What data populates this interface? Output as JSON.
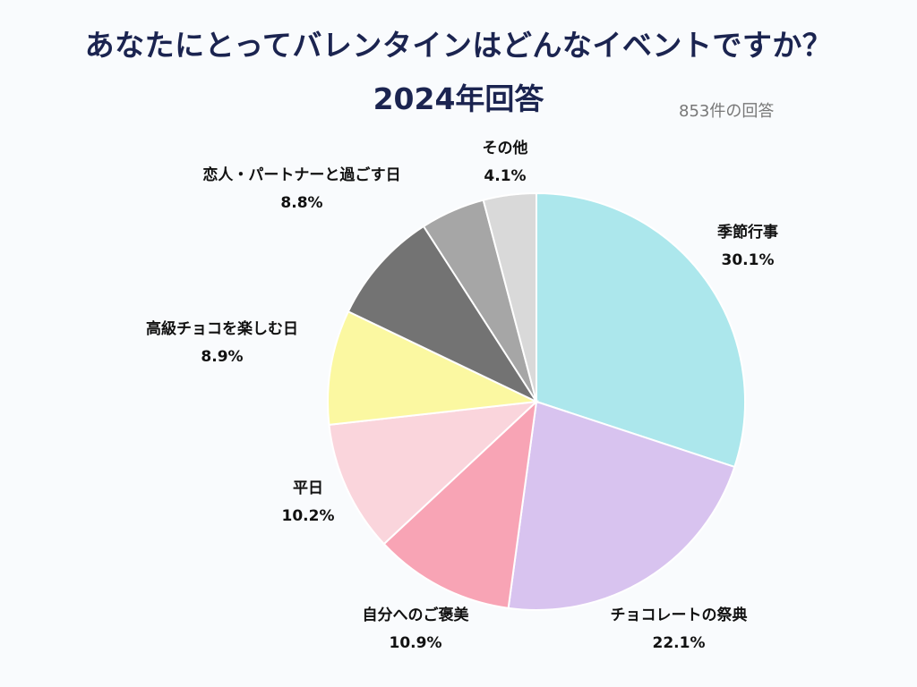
{
  "title_line1": "あなたにとってバレンタインはどんなイベントですか？",
  "title_line2": "2024年回答",
  "response_count": "853件の回答",
  "chart_data": {
    "type": "pie",
    "title": "あなたにとってバレンタインはどんなイベントですか？ 2024年回答",
    "start_angle": "12 o'clock",
    "direction": "clockwise",
    "slices": [
      {
        "label": "季節行事",
        "value": 30.1,
        "display": "30.1%",
        "color": "#ace7ec"
      },
      {
        "label": "チョコレートの祭典",
        "value": 22.1,
        "display": "22.1%",
        "color": "#d8c3ef"
      },
      {
        "label": "自分へのご褒美",
        "value": 10.9,
        "display": "10.9%",
        "color": "#f8a4b5"
      },
      {
        "label": "平日",
        "value": 10.2,
        "display": "10.2%",
        "color": "#fad5dc"
      },
      {
        "label": "高級チョコを楽しむ日",
        "value": 8.9,
        "display": "8.9%",
        "color": "#fbf8a1"
      },
      {
        "label": "恋人・パートナーと過ごす日",
        "value": 8.8,
        "display": "8.8%",
        "color": "#737373"
      },
      {
        "label": "",
        "value": 5.0,
        "display": "",
        "color": "#a6a6a6"
      },
      {
        "label": "その他",
        "value": 4.1,
        "display": "4.1%",
        "color": "#d9d9d9"
      }
    ]
  }
}
